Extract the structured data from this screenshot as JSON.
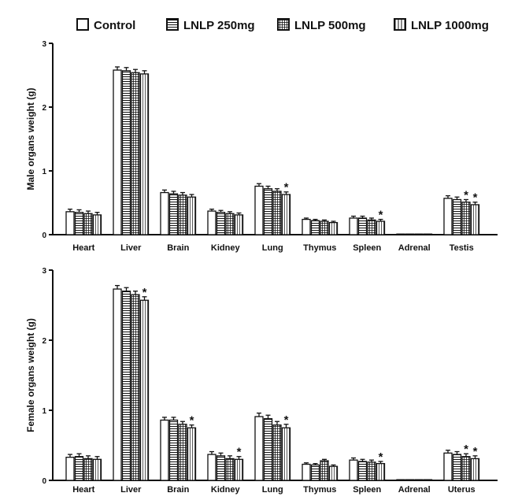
{
  "legend": [
    {
      "label": "Control",
      "pattern": "blank"
    },
    {
      "label": "LNLP 250mg",
      "pattern": "hlines"
    },
    {
      "label": "LNLP 500mg",
      "pattern": "cross"
    },
    {
      "label": "LNLP 1000mg",
      "pattern": "hatch"
    }
  ],
  "colors": {
    "stroke": "#111111",
    "background": "#ffffff"
  },
  "chart_data": [
    {
      "type": "bar",
      "ylabel": "Male organs weight (g)",
      "ylim": [
        0,
        3
      ],
      "yticks": [
        "0",
        "1",
        "2",
        "3"
      ],
      "categories": [
        "Heart",
        "Liver",
        "Brain",
        "Kidney",
        "Lung",
        "Thymus",
        "Spleen",
        "Adrenal",
        "Testis"
      ],
      "series": [
        {
          "name": "Control",
          "values": [
            0.36,
            2.58,
            0.66,
            0.37,
            0.76,
            0.24,
            0.26,
            0.01,
            0.57
          ],
          "errors": [
            0.04,
            0.05,
            0.04,
            0.03,
            0.04,
            0.02,
            0.03,
            0.002,
            0.04
          ]
        },
        {
          "name": "LNLP 250mg",
          "values": [
            0.35,
            2.57,
            0.64,
            0.35,
            0.72,
            0.22,
            0.26,
            0.01,
            0.55
          ],
          "errors": [
            0.04,
            0.05,
            0.04,
            0.03,
            0.04,
            0.02,
            0.03,
            0.002,
            0.04
          ]
        },
        {
          "name": "LNLP 500mg",
          "values": [
            0.33,
            2.54,
            0.62,
            0.33,
            0.68,
            0.21,
            0.23,
            0.01,
            0.51
          ],
          "errors": [
            0.04,
            0.05,
            0.04,
            0.03,
            0.04,
            0.02,
            0.03,
            0.002,
            0.04
          ]
        },
        {
          "name": "LNLP 1000mg",
          "values": [
            0.31,
            2.52,
            0.59,
            0.31,
            0.63,
            0.19,
            0.21,
            0.01,
            0.47
          ],
          "errors": [
            0.04,
            0.05,
            0.04,
            0.03,
            0.04,
            0.02,
            0.03,
            0.002,
            0.04
          ]
        }
      ],
      "significant": [
        {
          "category": "Lung",
          "series": "LNLP 1000mg",
          "mark": "*"
        },
        {
          "category": "Spleen",
          "series": "LNLP 1000mg",
          "mark": "*"
        },
        {
          "category": "Testis",
          "series": "LNLP 500mg",
          "mark": "*"
        },
        {
          "category": "Testis",
          "series": "LNLP 1000mg",
          "mark": "*"
        }
      ]
    },
    {
      "type": "bar",
      "ylabel": "Female organs weight (g)",
      "ylim": [
        0,
        3
      ],
      "yticks": [
        "0",
        "1",
        "2",
        "3"
      ],
      "categories": [
        "Heart",
        "Liver",
        "Brain",
        "Kidney",
        "Lung",
        "Thymus",
        "Spleen",
        "Adrenal",
        "Uterus"
      ],
      "series": [
        {
          "name": "Control",
          "values": [
            0.33,
            2.73,
            0.86,
            0.37,
            0.91,
            0.23,
            0.29,
            0.01,
            0.39
          ],
          "errors": [
            0.04,
            0.05,
            0.04,
            0.04,
            0.05,
            0.02,
            0.03,
            0.002,
            0.04
          ]
        },
        {
          "name": "LNLP 250mg",
          "values": [
            0.34,
            2.7,
            0.86,
            0.35,
            0.88,
            0.22,
            0.27,
            0.01,
            0.37
          ],
          "errors": [
            0.04,
            0.05,
            0.04,
            0.04,
            0.05,
            0.02,
            0.03,
            0.002,
            0.04
          ]
        },
        {
          "name": "LNLP 500mg",
          "values": [
            0.31,
            2.65,
            0.8,
            0.31,
            0.79,
            0.28,
            0.26,
            0.01,
            0.34
          ],
          "errors": [
            0.04,
            0.05,
            0.04,
            0.04,
            0.05,
            0.02,
            0.03,
            0.002,
            0.04
          ]
        },
        {
          "name": "LNLP 1000mg",
          "values": [
            0.3,
            2.57,
            0.75,
            0.3,
            0.75,
            0.2,
            0.24,
            0.01,
            0.31
          ],
          "errors": [
            0.04,
            0.05,
            0.04,
            0.04,
            0.05,
            0.02,
            0.03,
            0.002,
            0.04
          ]
        }
      ],
      "significant": [
        {
          "category": "Liver",
          "series": "LNLP 1000mg",
          "mark": "*"
        },
        {
          "category": "Brain",
          "series": "LNLP 1000mg",
          "mark": "*"
        },
        {
          "category": "Kidney",
          "series": "LNLP 1000mg",
          "mark": "*"
        },
        {
          "category": "Lung",
          "series": "LNLP 1000mg",
          "mark": "*"
        },
        {
          "category": "Spleen",
          "series": "LNLP 1000mg",
          "mark": "*"
        },
        {
          "category": "Uterus",
          "series": "LNLP 500mg",
          "mark": "*"
        },
        {
          "category": "Uterus",
          "series": "LNLP 1000mg",
          "mark": "*"
        }
      ]
    }
  ]
}
